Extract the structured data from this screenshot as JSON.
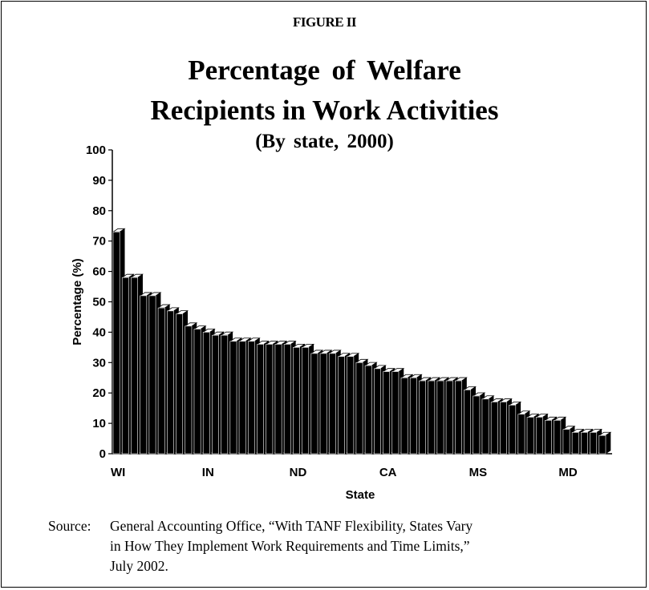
{
  "figure_label": "FIGURE II",
  "title_line1": "Percentage of Welfare",
  "title_line2": "Recipients in Work Activities",
  "subtitle": "(By state, 2000)",
  "source": {
    "label": "Source:",
    "line1": "General Accounting Office, “With TANF Flexibility, States Vary",
    "line2": "in How They Implement Work Requirements and Time Limits,”",
    "line3": "July 2002."
  },
  "chart_data": {
    "type": "bar",
    "style": "3d-black",
    "xlabel": "State",
    "ylabel": "Percentage (%)",
    "ylim": [
      0,
      100
    ],
    "yticks": [
      0,
      10,
      20,
      30,
      40,
      50,
      60,
      70,
      80,
      90,
      100
    ],
    "tick_labels": [
      {
        "index": 0,
        "label": "WI"
      },
      {
        "index": 10,
        "label": "IN"
      },
      {
        "index": 20,
        "label": "ND"
      },
      {
        "index": 30,
        "label": "CA"
      },
      {
        "index": 40,
        "label": "MS"
      },
      {
        "index": 50,
        "label": "MD"
      }
    ],
    "values": [
      73,
      58,
      58,
      52,
      52,
      48,
      47,
      46,
      42,
      41,
      40,
      39,
      39,
      37,
      37,
      37,
      36,
      36,
      36,
      36,
      35,
      35,
      33,
      33,
      33,
      32,
      32,
      30,
      29,
      28,
      27,
      27,
      25,
      25,
      24,
      24,
      24,
      24,
      24,
      21,
      19,
      18,
      17,
      17,
      16,
      13,
      12,
      12,
      11,
      11,
      8,
      7,
      7,
      7,
      6
    ],
    "bar_color": "#000000",
    "grid": false
  }
}
